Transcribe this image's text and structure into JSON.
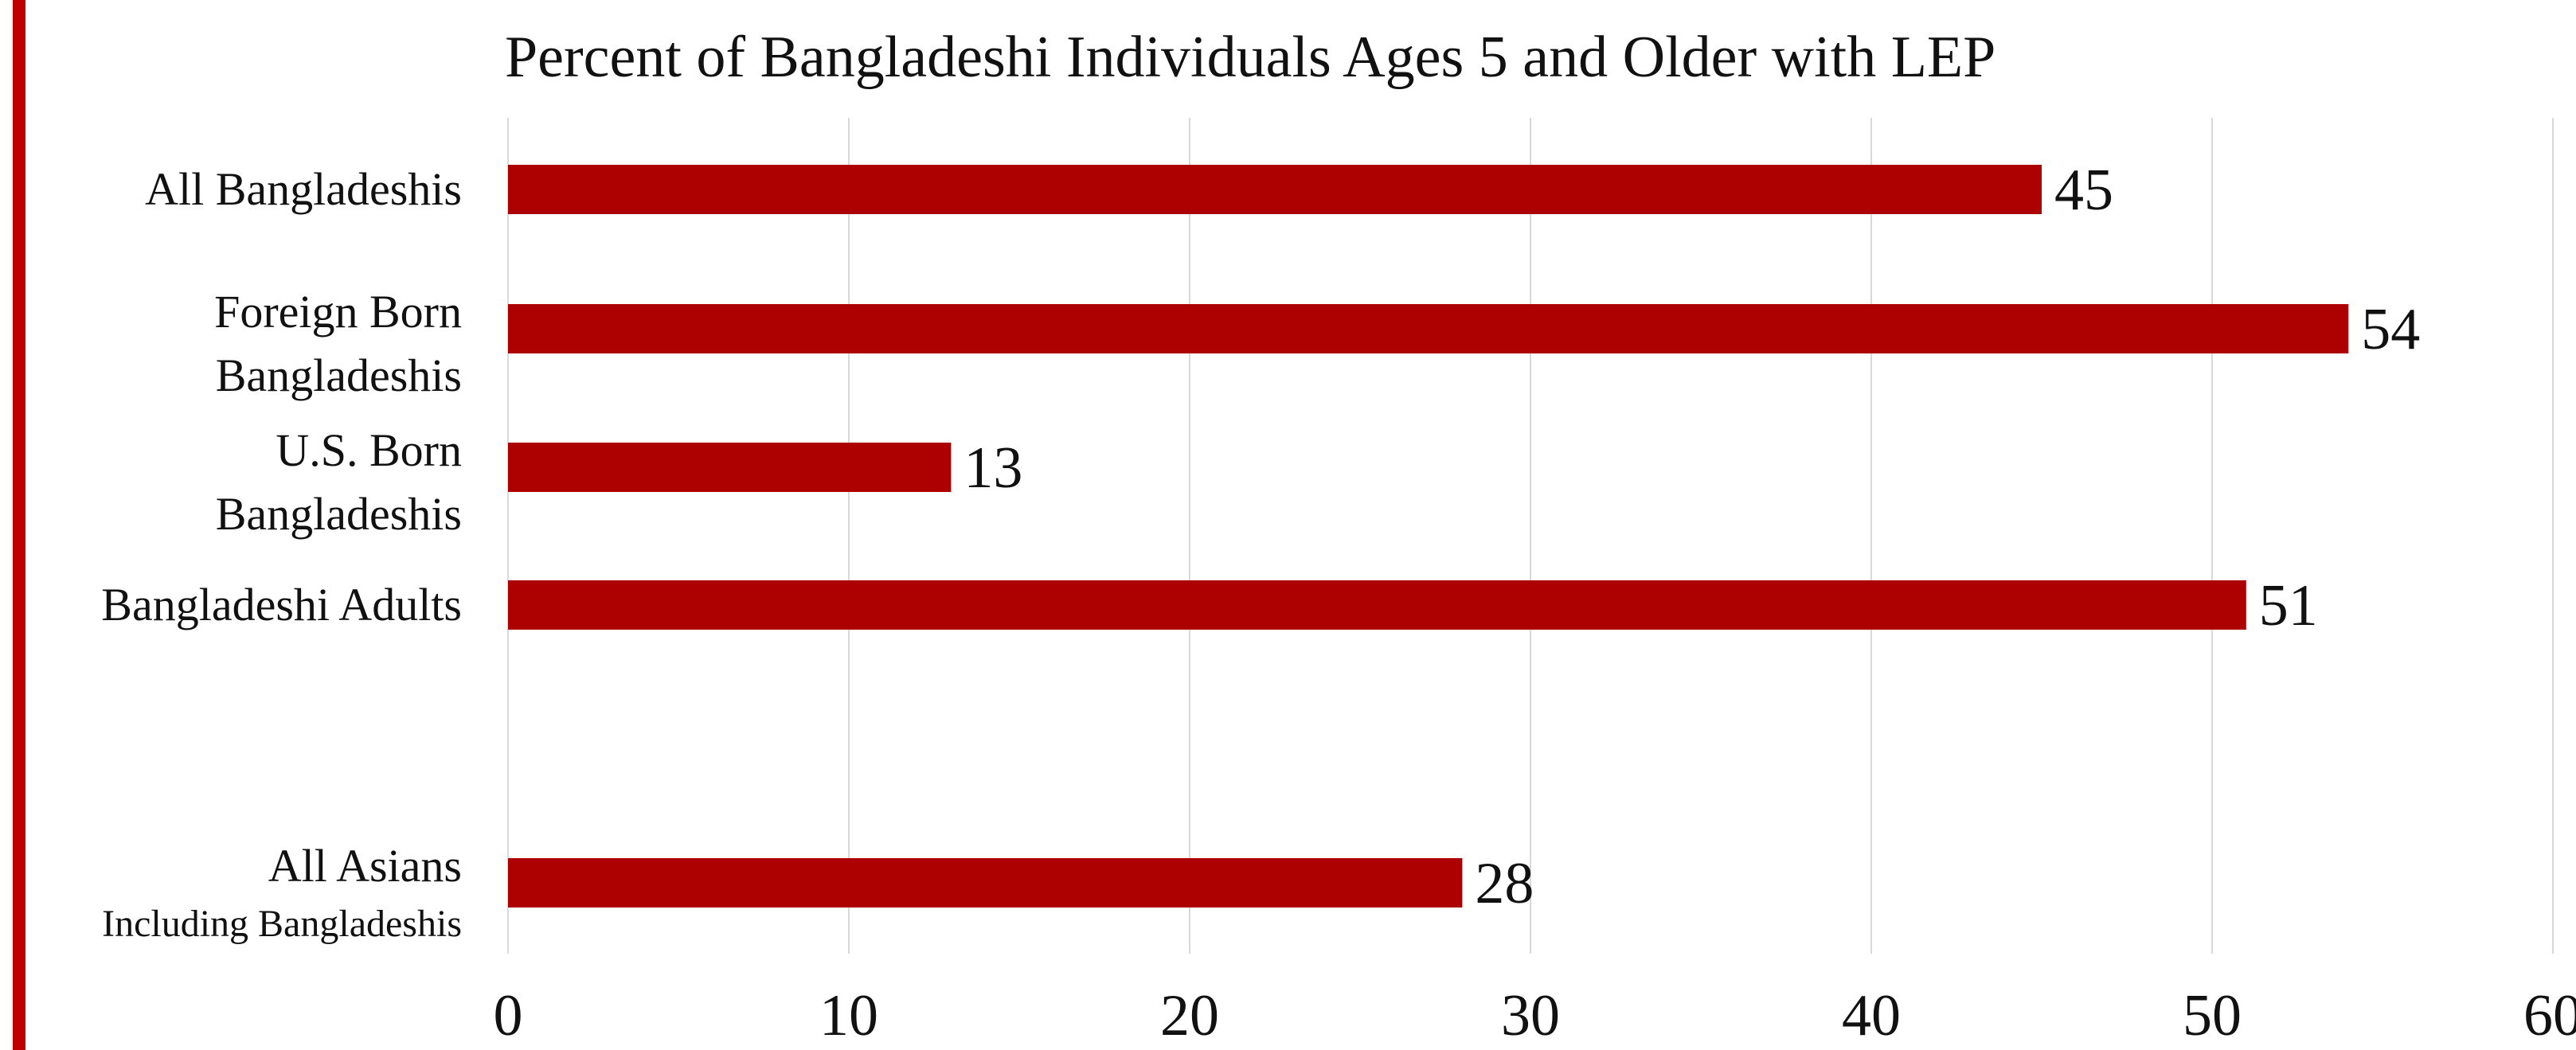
{
  "chart_data": {
    "type": "bar",
    "orientation": "horizontal",
    "title": "Percent of  Bangladeshi Individuals Ages 5 and Older with LEP",
    "xlabel": "",
    "ylabel": "",
    "xlim": [
      0,
      60
    ],
    "x_ticks": [
      "0",
      "10",
      "20",
      "30",
      "40",
      "50",
      "60"
    ],
    "grid": true,
    "legend": "none",
    "categories": [
      {
        "lines": [
          "All Bangladeshis"
        ],
        "value": 45,
        "label": "45"
      },
      {
        "lines": [
          "Foreign Born",
          "Bangladeshis"
        ],
        "value": 54,
        "label": "54"
      },
      {
        "lines": [
          "U.S. Born",
          "Bangladeshis"
        ],
        "value": 13,
        "label": "13"
      },
      {
        "lines": [
          "Bangladeshi Adults"
        ],
        "value": 51,
        "label": "51"
      },
      {
        "lines": [
          "All Asians",
          "Including Bangladeshis"
        ],
        "value": 28,
        "label": "28"
      }
    ],
    "colors": {
      "bar": "#ad0000",
      "accent": "#c00000",
      "grid": "#d9d9d9"
    }
  }
}
